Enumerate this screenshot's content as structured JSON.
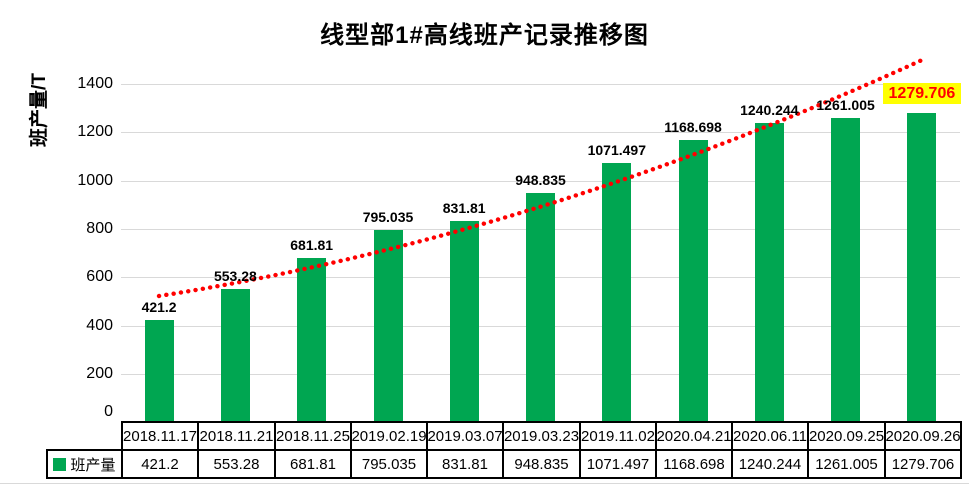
{
  "chart_data": {
    "type": "bar",
    "title": "线型部1#高线班产记录推移图",
    "ylabel": "班产量/T",
    "categories": [
      "2018.11.17",
      "2018.11.21",
      "2018.11.25",
      "2019.02.19",
      "2019.03.07",
      "2019.03.23",
      "2019.11.02",
      "2020.04.21",
      "2020.06.11",
      "2020.09.25",
      "2020.09.26"
    ],
    "series": [
      {
        "name": "班产量",
        "values": [
          421.2,
          553.28,
          681.81,
          795.035,
          831.81,
          948.835,
          1071.497,
          1168.698,
          1240.244,
          1261.005,
          1279.706
        ]
      }
    ],
    "data_labels": [
      "421.2",
      "553.28",
      "681.81",
      "795.035",
      "831.81",
      "948.835",
      "1071.497",
      "1168.698",
      "1240.244",
      "1261.005",
      "1279.706"
    ],
    "ylim": [
      0,
      1500
    ],
    "ytick_step": 200,
    "yticks": [
      "0",
      "200",
      "400",
      "600",
      "800",
      "1000",
      "1200",
      "1400"
    ],
    "grid": true,
    "legend_position": "table-row-left",
    "data_table_shown": true,
    "highlight_last_label": true,
    "trendline": {
      "style": "dotted",
      "shape": "upward-curve"
    },
    "colors": {
      "bar": "#00A651",
      "trendline": "#FF0000",
      "gridline": "#D9D9D9",
      "highlight_bg": "#FFFF00",
      "highlight_text": "#FF0000",
      "table_border": "#000000",
      "text": "#000000"
    }
  }
}
